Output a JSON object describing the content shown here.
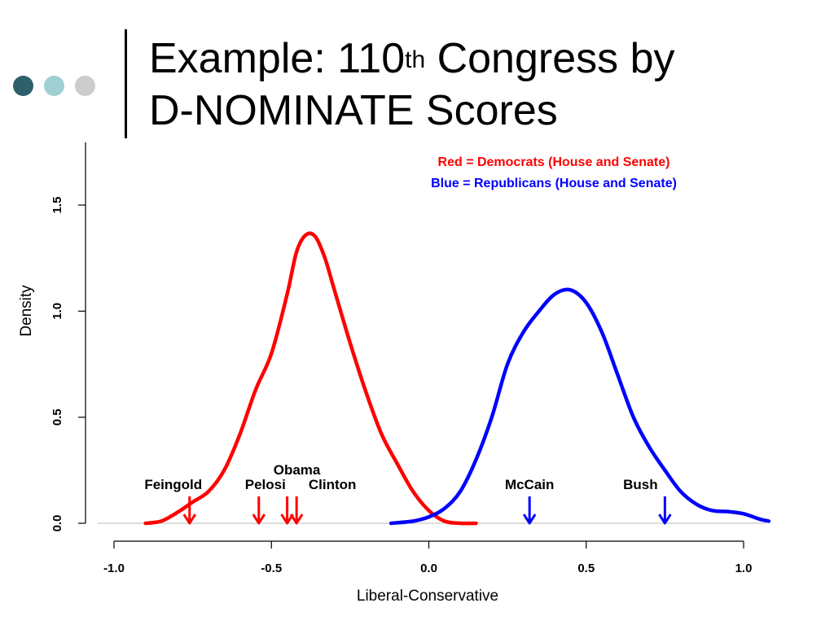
{
  "slide": {
    "title_line1_prefix": "Example: 110",
    "title_sup": "th",
    "title_line1_suffix": " Congress by",
    "title_line2": "D-NOMINATE Scores",
    "dot_colors": [
      "#2f5f6a",
      "#9ecfd2",
      "#cccccc"
    ]
  },
  "chart_data": {
    "type": "line",
    "xlabel": "Liberal-Conservative",
    "ylabel": "Density",
    "xlim": [
      -1.0,
      1.0
    ],
    "ylim": [
      0.0,
      1.75
    ],
    "x_ticks": [
      -1.0,
      -0.5,
      0.0,
      0.5,
      1.0
    ],
    "x_tick_labels": [
      "-1.0",
      "-0.5",
      "0.0",
      "0.5",
      "1.0"
    ],
    "y_ticks": [
      0.0,
      0.5,
      1.0,
      1.5
    ],
    "y_tick_labels": [
      "0.0",
      "0.5",
      "1.0",
      "1.5"
    ],
    "grid": false,
    "legend": [
      {
        "text": "Red = Democrats (House and Senate)",
        "color": "#ff0000"
      },
      {
        "text": "Blue = Republicans (House and Senate)",
        "color": "#0000ff"
      }
    ],
    "legend_position": "top-right",
    "series": [
      {
        "color": "#ff0000",
        "x": [
          -0.9,
          -0.85,
          -0.8,
          -0.75,
          -0.7,
          -0.65,
          -0.6,
          -0.55,
          -0.5,
          -0.45,
          -0.42,
          -0.39,
          -0.36,
          -0.33,
          -0.3,
          -0.25,
          -0.2,
          -0.15,
          -0.1,
          -0.05,
          0.0,
          0.05,
          0.1,
          0.15
        ],
        "y": [
          0.0,
          0.01,
          0.05,
          0.1,
          0.15,
          0.25,
          0.42,
          0.63,
          0.8,
          1.08,
          1.28,
          1.36,
          1.35,
          1.25,
          1.1,
          0.85,
          0.62,
          0.42,
          0.28,
          0.15,
          0.06,
          0.01,
          0.0,
          0.0
        ]
      },
      {
        "color": "#0000ff",
        "x": [
          -0.12,
          -0.05,
          0.0,
          0.05,
          0.1,
          0.15,
          0.2,
          0.25,
          0.3,
          0.35,
          0.4,
          0.45,
          0.5,
          0.55,
          0.6,
          0.65,
          0.7,
          0.75,
          0.8,
          0.85,
          0.9,
          0.95,
          1.0,
          1.05,
          1.08
        ],
        "y": [
          0.0,
          0.01,
          0.03,
          0.07,
          0.15,
          0.3,
          0.5,
          0.75,
          0.9,
          1.0,
          1.08,
          1.1,
          1.04,
          0.9,
          0.7,
          0.5,
          0.36,
          0.25,
          0.15,
          0.09,
          0.06,
          0.055,
          0.045,
          0.02,
          0.01
        ]
      }
    ],
    "annotations": [
      {
        "label": "Feingold",
        "x": -0.76,
        "color": "#ff0000",
        "label_row": 1
      },
      {
        "label": "Pelosi",
        "x": -0.54,
        "color": "#ff0000",
        "label_row": 1
      },
      {
        "label": "Obama",
        "x": -0.45,
        "color": "#ff0000",
        "label_row": 0
      },
      {
        "label": "Clinton",
        "x": -0.42,
        "color": "#ff0000",
        "label_row": 1
      },
      {
        "label": "McCain",
        "x": 0.32,
        "color": "#0000ff",
        "label_row": 1
      },
      {
        "label": "Bush",
        "x": 0.75,
        "color": "#0000ff",
        "label_row": 1
      }
    ]
  }
}
